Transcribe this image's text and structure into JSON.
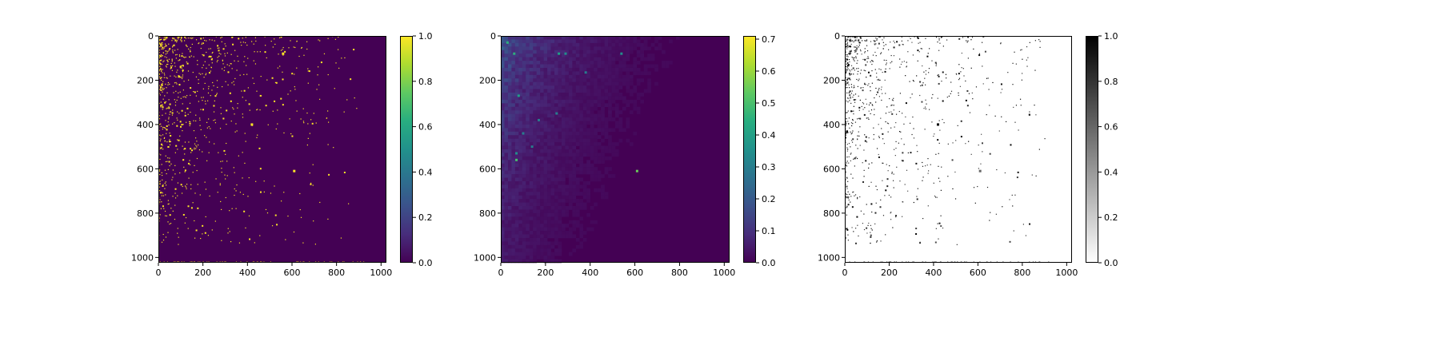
{
  "chart_data": [
    {
      "type": "heatmap",
      "name": "binary-matrix",
      "colormap": "viridis",
      "background_value": 0.0,
      "xlim": [
        0,
        1024
      ],
      "ylim": [
        1024,
        0
      ],
      "xticks": [
        0,
        200,
        400,
        600,
        800,
        1000
      ],
      "yticks": [
        0,
        200,
        400,
        600,
        800,
        1000
      ],
      "xtick_labels": [
        "0",
        "200",
        "400",
        "600",
        "800",
        "1000"
      ],
      "ytick_labels": [
        "0",
        "200",
        "400",
        "600",
        "800",
        "1000"
      ],
      "colorbar": {
        "range": [
          0.0,
          1.0
        ],
        "ticks": [
          0.0,
          0.2,
          0.4,
          0.6,
          0.8,
          1.0
        ],
        "tick_labels": [
          "0.0",
          "0.2",
          "0.4",
          "0.6",
          "0.8",
          "1.0"
        ]
      },
      "highlights": [
        {
          "x": 610,
          "y": 610,
          "value": 1.0
        },
        {
          "x": 420,
          "y": 400,
          "value": 1.0
        },
        {
          "x": 560,
          "y": 80,
          "value": 1.0
        }
      ]
    },
    {
      "type": "heatmap",
      "name": "density-matrix",
      "colormap": "viridis",
      "background_value": 0.0,
      "xlim": [
        0,
        1024
      ],
      "ylim": [
        1024,
        0
      ],
      "xticks": [
        0,
        200,
        400,
        600,
        800,
        1000
      ],
      "yticks": [
        0,
        200,
        400,
        600,
        800,
        1000
      ],
      "xtick_labels": [
        "0",
        "200",
        "400",
        "600",
        "800",
        "1000"
      ],
      "ytick_labels": [
        "0",
        "200",
        "400",
        "600",
        "800",
        "1000"
      ],
      "colorbar": {
        "range": [
          0.0,
          0.71
        ],
        "ticks": [
          0.0,
          0.1,
          0.2,
          0.3,
          0.4,
          0.5,
          0.6,
          0.7
        ],
        "tick_labels": [
          "0.0",
          "0.1",
          "0.2",
          "0.3",
          "0.4",
          "0.5",
          "0.6",
          "0.7"
        ]
      },
      "highlights": [
        {
          "x": 610,
          "y": 610,
          "value": 0.55
        },
        {
          "x": 70,
          "y": 560,
          "value": 0.5
        },
        {
          "x": 70,
          "y": 530,
          "value": 0.35
        },
        {
          "x": 80,
          "y": 270,
          "value": 0.4
        },
        {
          "x": 260,
          "y": 80,
          "value": 0.4
        },
        {
          "x": 290,
          "y": 80,
          "value": 0.35
        },
        {
          "x": 540,
          "y": 80,
          "value": 0.35
        },
        {
          "x": 380,
          "y": 165,
          "value": 0.3
        },
        {
          "x": 250,
          "y": 350,
          "value": 0.3
        },
        {
          "x": 170,
          "y": 380,
          "value": 0.3
        },
        {
          "x": 100,
          "y": 440,
          "value": 0.3
        },
        {
          "x": 140,
          "y": 500,
          "value": 0.3
        },
        {
          "x": 30,
          "y": 30,
          "value": 0.45
        },
        {
          "x": 60,
          "y": 80,
          "value": 0.45
        }
      ]
    },
    {
      "type": "heatmap",
      "name": "grayscale-matrix",
      "colormap": "Greys",
      "background_value": 0.0,
      "xlim": [
        0,
        1024
      ],
      "ylim": [
        1024,
        0
      ],
      "xticks": [
        0,
        200,
        400,
        600,
        800,
        1000
      ],
      "yticks": [
        0,
        200,
        400,
        600,
        800,
        1000
      ],
      "xtick_labels": [
        "0",
        "200",
        "400",
        "600",
        "800",
        "1000"
      ],
      "ytick_labels": [
        "0",
        "200",
        "400",
        "600",
        "800",
        "1000"
      ],
      "colorbar": {
        "range": [
          0.0,
          1.0
        ],
        "ticks": [
          0.0,
          0.2,
          0.4,
          0.6,
          0.8,
          1.0
        ],
        "tick_labels": [
          "0.0",
          "0.2",
          "0.4",
          "0.6",
          "0.8",
          "1.0"
        ]
      },
      "highlights": [
        {
          "x": 610,
          "y": 610,
          "value": 0.6
        },
        {
          "x": 420,
          "y": 400,
          "value": 1.0
        }
      ]
    }
  ]
}
